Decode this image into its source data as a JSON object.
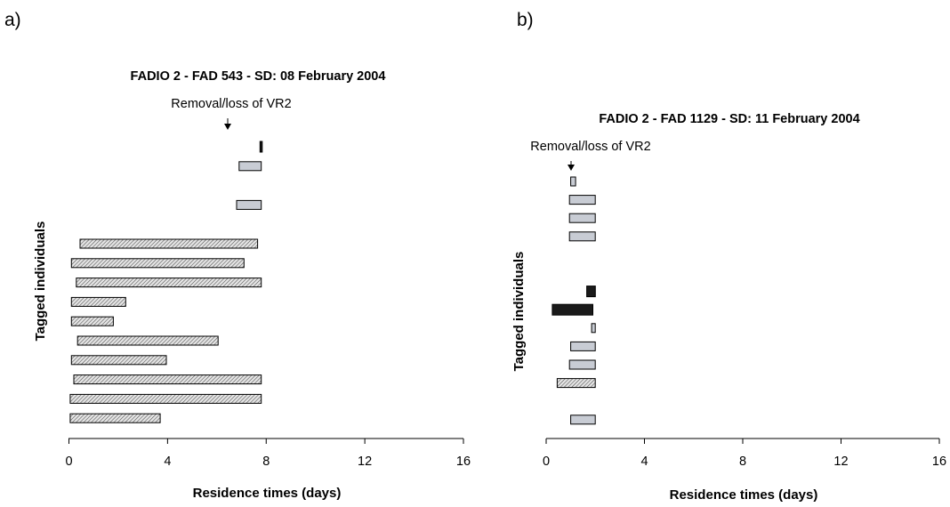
{
  "chart_data": [
    {
      "type": "bar",
      "panel_label": "a)",
      "title": "FADIO 2 - FAD 543 - SD: 08 February 2004",
      "xlabel": "Residence times (days)",
      "ylabel": "Tagged individuals",
      "xlim": [
        0,
        16
      ],
      "xticks": [
        "0",
        "4",
        "8",
        "12",
        "16"
      ],
      "annotation": {
        "text": "Removal/loss of VR2",
        "x": 6.4
      },
      "legend": "none",
      "grid": false,
      "series": [
        {
          "fill": "hatched",
          "bars": [
            {
              "row": 1,
              "start": 7.75,
              "end": 7.8,
              "fill": "black"
            },
            {
              "row": 2,
              "start": 6.9,
              "end": 7.8,
              "fill": "gray"
            },
            {
              "row": 4,
              "start": 6.8,
              "end": 7.8,
              "fill": "gray"
            },
            {
              "row": 6,
              "start": 0.45,
              "end": 7.65,
              "fill": "hatched"
            },
            {
              "row": 7,
              "start": 0.1,
              "end": 7.1,
              "fill": "hatched"
            },
            {
              "row": 8,
              "start": 0.3,
              "end": 7.8,
              "fill": "hatched"
            },
            {
              "row": 9,
              "start": 0.1,
              "end": 2.3,
              "fill": "hatched"
            },
            {
              "row": 10,
              "start": 0.1,
              "end": 1.8,
              "fill": "hatched"
            },
            {
              "row": 11,
              "start": 0.35,
              "end": 6.05,
              "fill": "hatched"
            },
            {
              "row": 12,
              "start": 0.1,
              "end": 3.95,
              "fill": "hatched"
            },
            {
              "row": 13,
              "start": 0.2,
              "end": 7.8,
              "fill": "hatched"
            },
            {
              "row": 14,
              "start": 0.05,
              "end": 7.8,
              "fill": "hatched"
            },
            {
              "row": 15,
              "start": 0.05,
              "end": 3.7,
              "fill": "hatched"
            }
          ]
        }
      ],
      "row_count": 16
    },
    {
      "type": "bar",
      "panel_label": "b)",
      "title": "FADIO 2 - FAD 1129 - SD: 11 February 2004",
      "xlabel": "Residence times (days)",
      "ylabel": "Tagged individuals",
      "xlim": [
        0,
        16
      ],
      "xticks": [
        "0",
        "4",
        "8",
        "12",
        "16"
      ],
      "annotation": {
        "text": "Removal/loss of VR2",
        "x": 1.0
      },
      "legend": "none",
      "grid": false,
      "series": [
        {
          "fill": "gray",
          "bars": [
            {
              "row": 1,
              "start": 1.0,
              "end": 1.2,
              "fill": "gray"
            },
            {
              "row": 2,
              "start": 0.95,
              "end": 2.0,
              "fill": "gray"
            },
            {
              "row": 3,
              "start": 0.95,
              "end": 2.0,
              "fill": "gray"
            },
            {
              "row": 4,
              "start": 0.95,
              "end": 2.0,
              "fill": "gray"
            },
            {
              "row": 7,
              "start": 1.65,
              "end": 2.0,
              "fill": "black"
            },
            {
              "row": 8,
              "start": 0.25,
              "end": 1.9,
              "fill": "black"
            },
            {
              "row": 9,
              "start": 1.85,
              "end": 2.0,
              "fill": "gray"
            },
            {
              "row": 10,
              "start": 1.0,
              "end": 2.0,
              "fill": "gray"
            },
            {
              "row": 11,
              "start": 0.95,
              "end": 2.0,
              "fill": "gray"
            },
            {
              "row": 12,
              "start": 0.45,
              "end": 2.0,
              "fill": "hatched"
            },
            {
              "row": 14,
              "start": 1.0,
              "end": 2.0,
              "fill": "gray"
            }
          ]
        }
      ],
      "row_count": 15
    }
  ],
  "colors": {
    "gray": "#c8ccd4",
    "black": "#1a1a1a",
    "hatch_bg": "#e6e6e6",
    "hatch_line": "#555555",
    "stroke": "#000000"
  }
}
